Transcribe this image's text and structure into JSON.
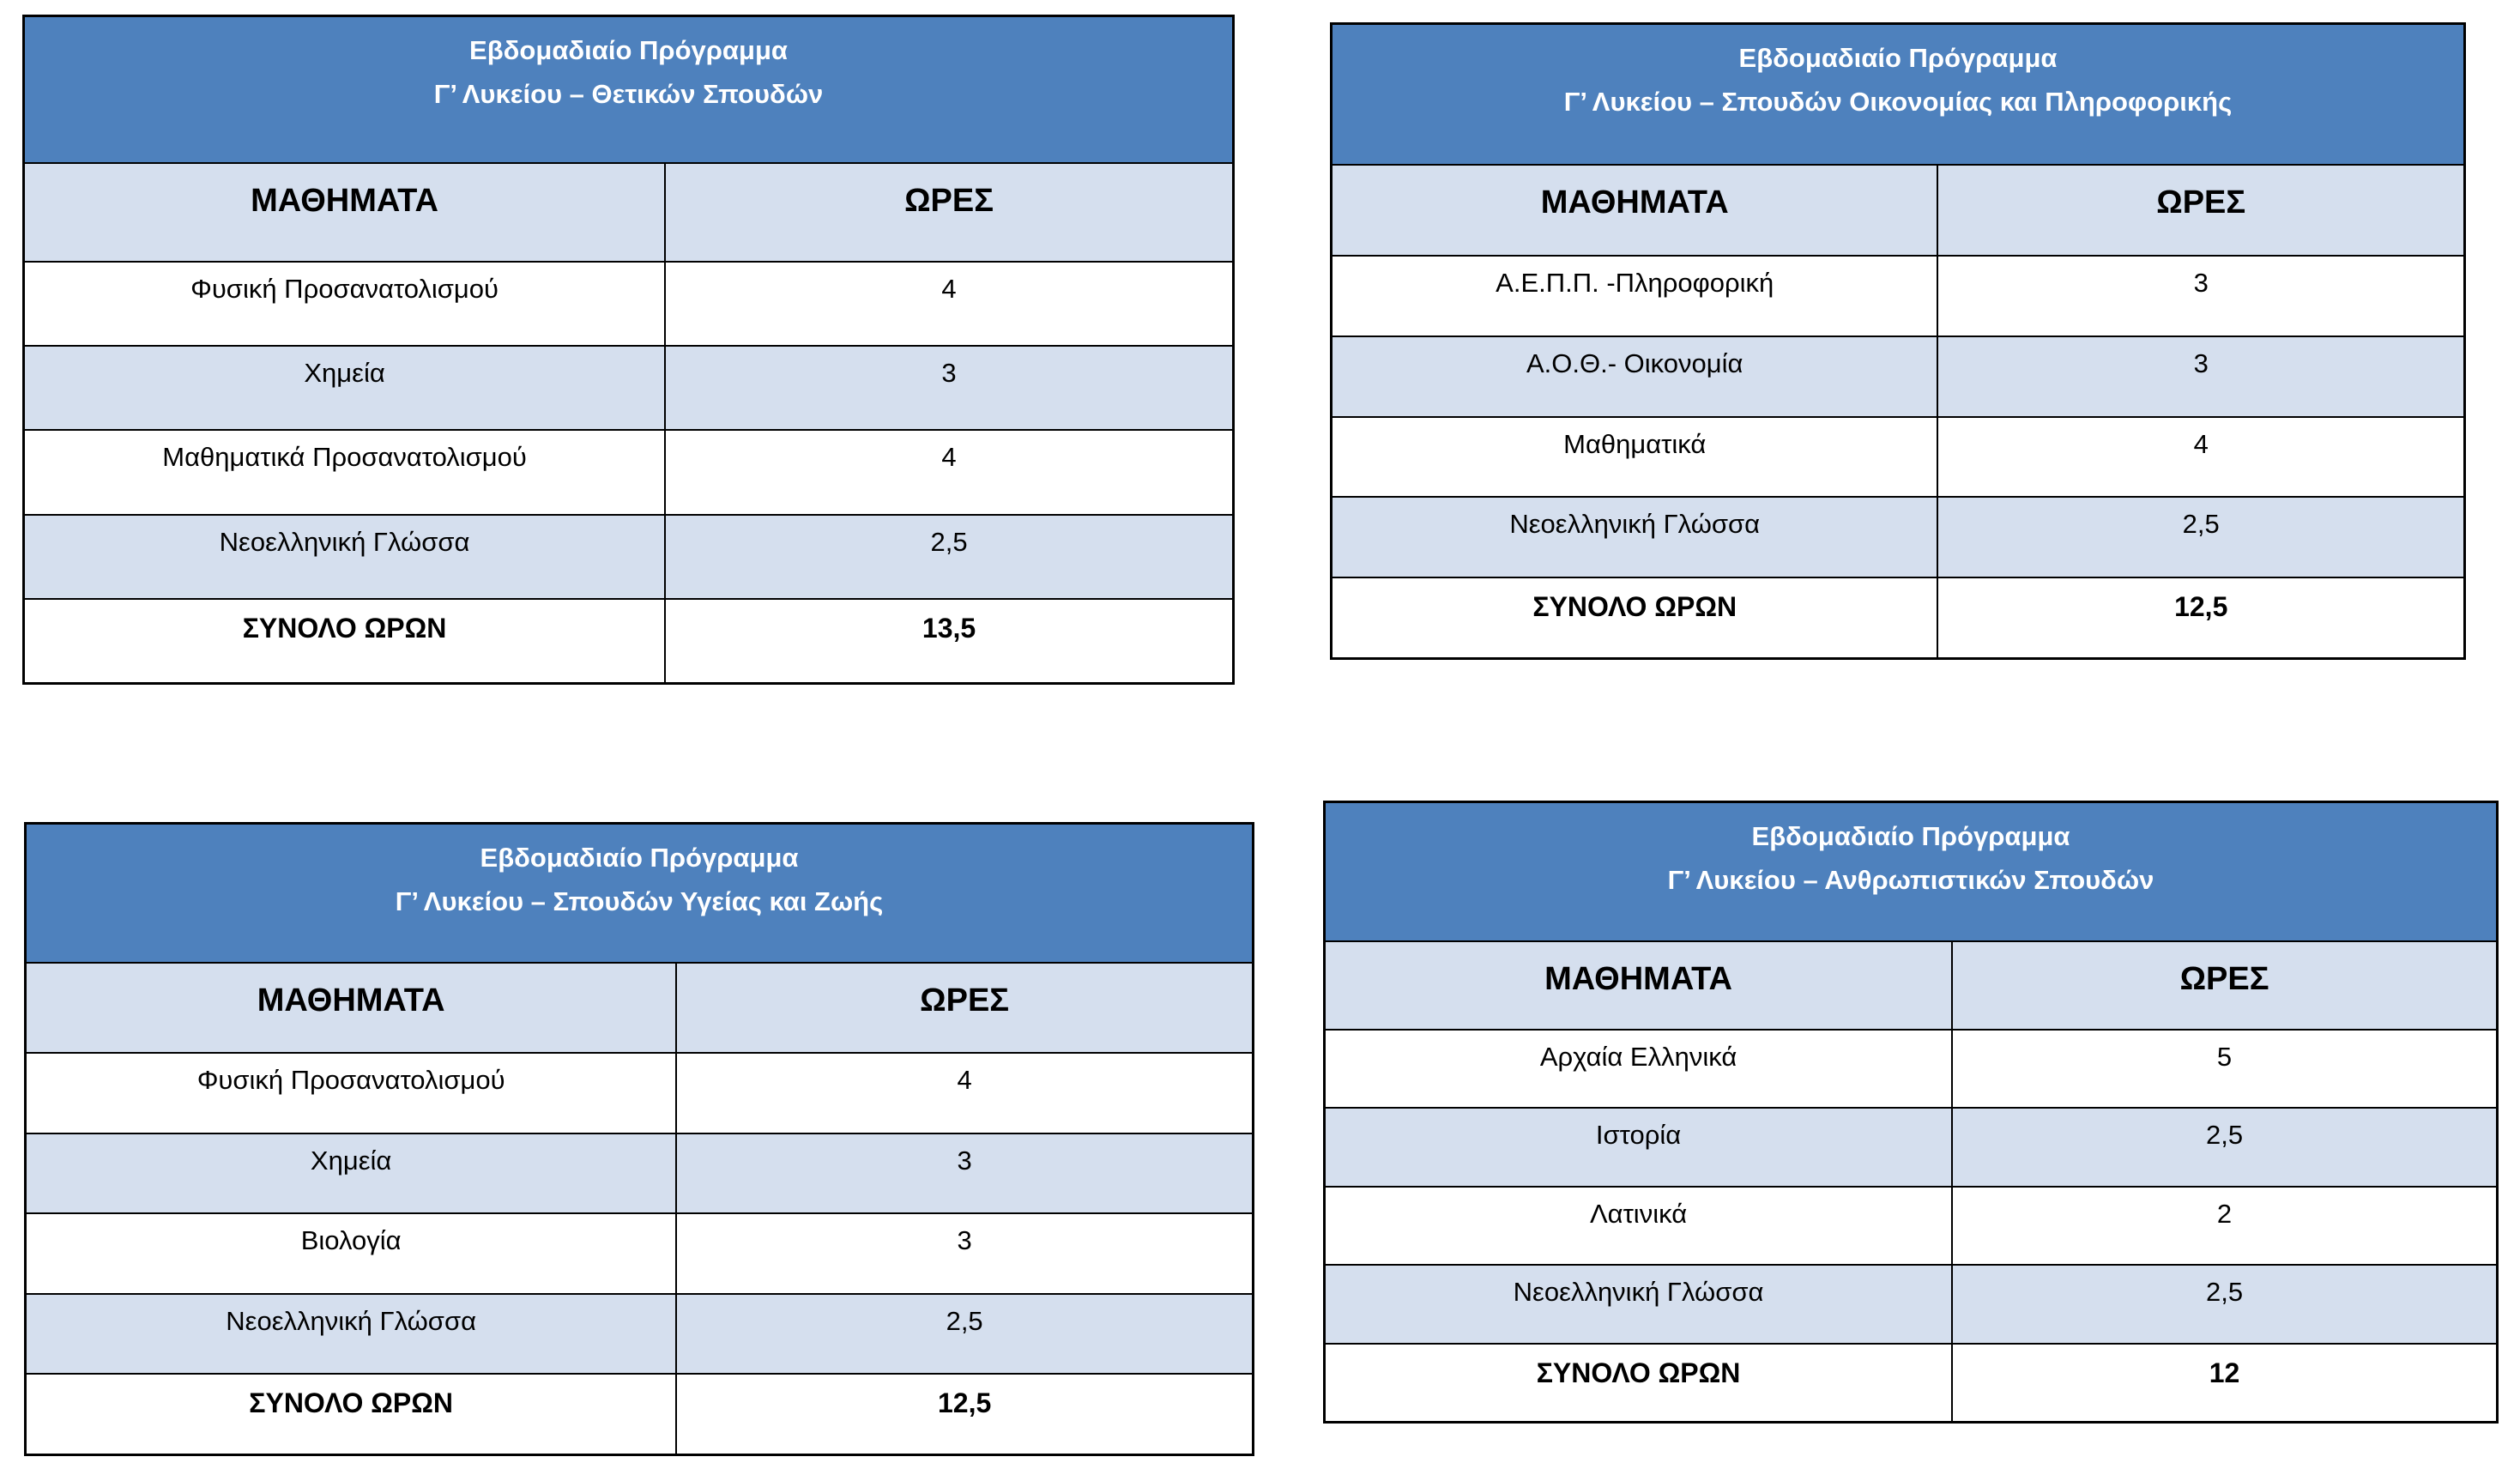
{
  "colors": {
    "header_blue": "#4e81bd",
    "stripe_blue": "#d5dfee",
    "border_black": "#000000",
    "title_text": "#ffffff",
    "body_text": "#000000",
    "page_bg": "#ffffff"
  },
  "tables": [
    {
      "id": "science",
      "title_line1": "Εβδομαδιαίο Πρόγραμμα",
      "title_line2": "Γ’ Λυκείου – Θετικών  Σπουδών",
      "col_headers": [
        "ΜΑΘΗΜΑΤΑ",
        "ΩΡΕΣ"
      ],
      "rows": [
        {
          "subject": "Φυσική Προσανατολισμού",
          "hours": "4"
        },
        {
          "subject": "Χημεία",
          "hours": "3"
        },
        {
          "subject": "Μαθηματικά Προσανατολισμού",
          "hours": "4"
        },
        {
          "subject": "Νεοελληνική Γλώσσα",
          "hours": "2,5"
        }
      ],
      "total_label": "ΣΥΝΟΛΟ ΩΡΩΝ",
      "total_hours": "13,5"
    },
    {
      "id": "economics-informatics",
      "title_line1": "Εβδομαδιαίο Πρόγραμμα",
      "title_line2": "Γ’ Λυκείου – Σπουδών Οικονομίας και Πληροφορικής",
      "col_headers": [
        "ΜΑΘΗΜΑΤΑ",
        "ΩΡΕΣ"
      ],
      "rows": [
        {
          "subject": "Α.Ε.Π.Π. -Πληροφορική",
          "hours": "3"
        },
        {
          "subject": "Α.Ο.Θ.- Οικονομία",
          "hours": "3"
        },
        {
          "subject": "Μαθηματικά",
          "hours": "4"
        },
        {
          "subject": "Νεοελληνική Γλώσσα",
          "hours": "2,5"
        }
      ],
      "total_label": "ΣΥΝΟΛΟ ΩΡΩΝ",
      "total_hours": "12,5"
    },
    {
      "id": "health-life",
      "title_line1": "Εβδομαδιαίο Πρόγραμμα",
      "title_line2": "Γ’ Λυκείου – Σπουδών Υγείας και Ζωής",
      "col_headers": [
        "ΜΑΘΗΜΑΤΑ",
        "ΩΡΕΣ"
      ],
      "rows": [
        {
          "subject": "Φυσική Προσανατολισμού",
          "hours": "4"
        },
        {
          "subject": "Χημεία",
          "hours": "3"
        },
        {
          "subject": "Βιολογία",
          "hours": "3"
        },
        {
          "subject": "Νεοελληνική Γλώσσα",
          "hours": "2,5"
        }
      ],
      "total_label": "ΣΥΝΟΛΟ ΩΡΩΝ",
      "total_hours": "12,5"
    },
    {
      "id": "humanities",
      "title_line1": "Εβδομαδιαίο Πρόγραμμα",
      "title_line2": "Γ’ Λυκείου – Ανθρωπιστικών Σπουδών",
      "col_headers": [
        "ΜΑΘΗΜΑΤΑ",
        "ΩΡΕΣ"
      ],
      "rows": [
        {
          "subject": "Αρχαία Ελληνικά",
          "hours": "5"
        },
        {
          "subject": "Ιστορία",
          "hours": "2,5"
        },
        {
          "subject": "Λατινικά",
          "hours": "2"
        },
        {
          "subject": "Νεοελληνική Γλώσσα",
          "hours": "2,5"
        }
      ],
      "total_label": "ΣΥΝΟΛΟ ΩΡΩΝ",
      "total_hours": "12"
    }
  ]
}
